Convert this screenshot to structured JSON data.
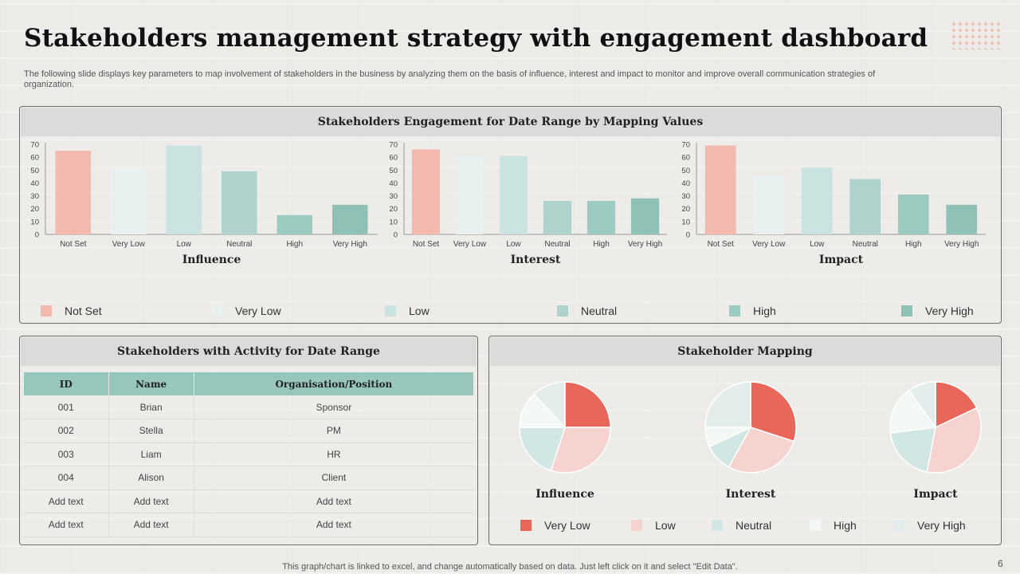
{
  "header": {
    "title": "Stakeholders management strategy with engagement dashboard",
    "subtitle": "The following slide displays key parameters to map involvement of stakeholders in the business by analyzing them on the basis of influence, interest and impact to monitor and improve overall communication strategies of organization."
  },
  "colors": {
    "not_set": "#f3b8ae",
    "very_low": "#e8f1f0",
    "low": "#cbe3e0",
    "neutral": "#aed3cc",
    "high": "#9ccbc2",
    "very_high": "#8fc1b6",
    "pie_very_low": "#e8665a",
    "pie_low": "#f6d3ce",
    "pie_neutral": "#d2e7e4",
    "pie_high": "#f3f8f7",
    "pie_very_high": "#e3eeec"
  },
  "engagement": {
    "title": "Stakeholders Engagement for Date Range by Mapping Values",
    "legend": [
      "Not Set",
      "Very Low",
      "Low",
      "Neutral",
      "High",
      "Very High"
    ]
  },
  "activity": {
    "title": "Stakeholders with Activity for Date Range",
    "columns": [
      "ID",
      "Name",
      "Organisation/Position"
    ],
    "rows": [
      [
        "001",
        "Brian",
        "Sponsor"
      ],
      [
        "002",
        "Stella",
        "PM"
      ],
      [
        "003",
        "Liam",
        "HR"
      ],
      [
        "004",
        "Alison",
        "Client"
      ],
      [
        "Add text",
        "Add text",
        "Add text"
      ],
      [
        "Add text",
        "Add text",
        "Add text"
      ]
    ]
  },
  "mapping": {
    "title": "Stakeholder Mapping",
    "legend": [
      "Very Low",
      "Low",
      "Neutral",
      "High",
      "Very High"
    ]
  },
  "chart_data": [
    {
      "type": "bar",
      "title": "Influence",
      "categories": [
        "Not Set",
        "Very Low",
        "Low",
        "Neutral",
        "High",
        "Very High"
      ],
      "values": [
        65,
        52,
        69,
        49,
        15,
        23
      ],
      "ylim": [
        0,
        70
      ],
      "yticks": [
        0,
        10,
        20,
        30,
        40,
        50,
        60,
        70
      ]
    },
    {
      "type": "bar",
      "title": "Interest",
      "categories": [
        "Not Set",
        "Very Low",
        "Low",
        "Neutral",
        "High",
        "Very High"
      ],
      "values": [
        66,
        61,
        61,
        26,
        26,
        28
      ],
      "ylim": [
        0,
        70
      ],
      "yticks": [
        0,
        10,
        20,
        30,
        40,
        50,
        60,
        70
      ]
    },
    {
      "type": "bar",
      "title": "Impact",
      "categories": [
        "Not Set",
        "Very Low",
        "Low",
        "Neutral",
        "High",
        "Very High"
      ],
      "values": [
        69,
        46,
        52,
        43,
        31,
        23
      ],
      "ylim": [
        0,
        70
      ],
      "yticks": [
        0,
        10,
        20,
        30,
        40,
        50,
        60,
        70
      ]
    },
    {
      "type": "pie",
      "title": "Influence",
      "categories": [
        "Very Low",
        "Low",
        "Neutral",
        "High",
        "Very High"
      ],
      "values": [
        25,
        30,
        20,
        13,
        12
      ]
    },
    {
      "type": "pie",
      "title": "Interest",
      "categories": [
        "Very Low",
        "Low",
        "Neutral",
        "High",
        "Very High"
      ],
      "values": [
        30,
        28,
        10,
        7,
        25
      ]
    },
    {
      "type": "pie",
      "title": "Impact",
      "categories": [
        "Very Low",
        "Low",
        "Neutral",
        "High",
        "Very High"
      ],
      "values": [
        18,
        35,
        20,
        17,
        10
      ]
    }
  ],
  "footer": {
    "note": "This graph/chart is linked to excel,  and change automatically based on data. Just left click on it and select \"Edit Data\".",
    "page": "6"
  }
}
